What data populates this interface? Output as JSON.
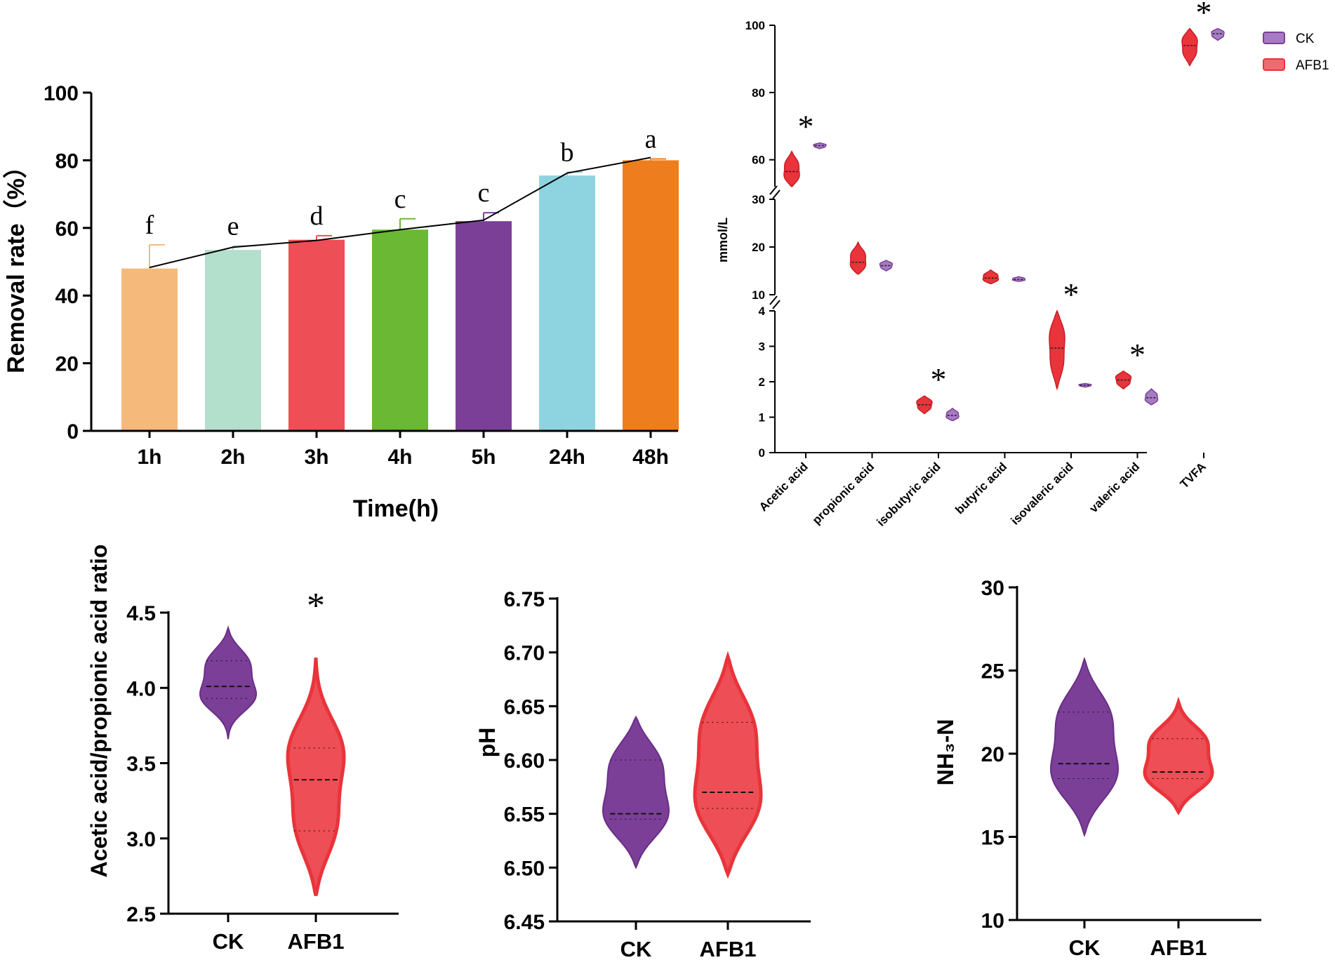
{
  "colors": {
    "ck": "#7B3F98",
    "ck_light": "#A77BC4",
    "afb1": "#E8343A",
    "afb1_light": "#F06B6E",
    "axis": "#000000"
  },
  "chart_data": [
    {
      "id": "removal",
      "type": "bar",
      "xlabel": "Time(h)",
      "ylabel": "Removal rate（%）",
      "ylim": [
        0,
        100
      ],
      "yticks": [
        0,
        20,
        40,
        60,
        80,
        100
      ],
      "categories": [
        "1h",
        "2h",
        "3h",
        "4h",
        "5h",
        "24h",
        "48h"
      ],
      "values": [
        48,
        53.5,
        56.5,
        59.5,
        62,
        75.5,
        80
      ],
      "errors": [
        7,
        1.2,
        1.2,
        3.2,
        2.5,
        1,
        0.4
      ],
      "line_values": [
        48.3,
        54.3,
        56.3,
        59.5,
        62.3,
        76.2,
        80.8
      ],
      "letters": [
        "f",
        "e",
        "d",
        "c",
        "c",
        "b",
        "a"
      ],
      "colors": [
        "#F5B97C",
        "#B3DFCD",
        "#EE4E55",
        "#6AB833",
        "#7B3F98",
        "#8ED4E0",
        "#EE7E1D"
      ]
    },
    {
      "id": "vfa",
      "type": "violin",
      "ylabel": "mmol/L",
      "legend": [
        "CK",
        "AFB1"
      ],
      "legend_position": "top-right",
      "categories": [
        "Acetic acid",
        "propionic acid",
        "isobutyric acid",
        "butyric acid",
        "isovaleric acid",
        "valeric acid",
        "TVFA"
      ],
      "axis_segments": [
        {
          "range": [
            0,
            4
          ],
          "ticks": [
            "0",
            "1",
            "2",
            "3",
            "4"
          ]
        },
        {
          "range": [
            10,
            30
          ],
          "ticks": [
            "10",
            "20",
            "30"
          ]
        },
        {
          "range": [
            52,
            100
          ],
          "ticks": [
            "60",
            "80",
            "100"
          ]
        }
      ],
      "series": [
        {
          "name": "AFB1",
          "min": [
            52,
            14.3,
            1.1,
            12.3,
            1.8,
            1.8,
            88
          ],
          "median": [
            56.5,
            16.8,
            1.35,
            13.5,
            2.95,
            2.05,
            94
          ],
          "max": [
            62.5,
            21,
            1.6,
            15.2,
            4,
            2.3,
            99
          ]
        },
        {
          "name": "CK",
          "min": [
            63.3,
            15,
            0.9,
            12.8,
            1.85,
            1.35,
            95.5
          ],
          "median": [
            64.2,
            16.1,
            1.05,
            13.2,
            1.9,
            1.55,
            97.5
          ],
          "max": [
            65,
            17.2,
            1.25,
            13.8,
            1.95,
            1.8,
            99
          ]
        }
      ],
      "significance": [
        "*",
        "",
        "*",
        "",
        "*",
        "*",
        "*"
      ]
    },
    {
      "id": "ratio",
      "type": "violin",
      "ylabel": "Acetic acid/propionic acid ratio",
      "ylim": [
        2.5,
        4.5
      ],
      "yticks": [
        "2.5",
        "3.0",
        "3.5",
        "4.0",
        "4.5"
      ],
      "categories": [
        "CK",
        "AFB1"
      ],
      "min": [
        3.66,
        2.62
      ],
      "q1": [
        3.93,
        3.05
      ],
      "median": [
        4.01,
        3.39
      ],
      "q3": [
        4.18,
        3.6
      ],
      "max": [
        4.4,
        4.2
      ],
      "significance": [
        "",
        "*"
      ]
    },
    {
      "id": "ph",
      "type": "violin",
      "ylabel": "pH",
      "ylim": [
        6.45,
        6.75
      ],
      "yticks": [
        "6.45",
        "6.50",
        "6.55",
        "6.60",
        "6.65",
        "6.70",
        "6.75"
      ],
      "categories": [
        "CK",
        "AFB1"
      ],
      "min": [
        6.5,
        6.494
      ],
      "q1": [
        6.545,
        6.555
      ],
      "median": [
        6.55,
        6.57
      ],
      "q3": [
        6.6,
        6.635
      ],
      "max": [
        6.64,
        6.696
      ]
    },
    {
      "id": "nh3",
      "type": "violin",
      "ylabel": "NH₃-N",
      "ylim": [
        10,
        30
      ],
      "yticks": [
        "10",
        "15",
        "20",
        "25",
        "30"
      ],
      "categories": [
        "CK",
        "AFB1"
      ],
      "min": [
        15.1,
        16.5
      ],
      "q1": [
        18.5,
        18.5
      ],
      "median": [
        19.4,
        18.9
      ],
      "q3": [
        22.5,
        20.9
      ],
      "max": [
        25.7,
        23.1
      ]
    }
  ]
}
